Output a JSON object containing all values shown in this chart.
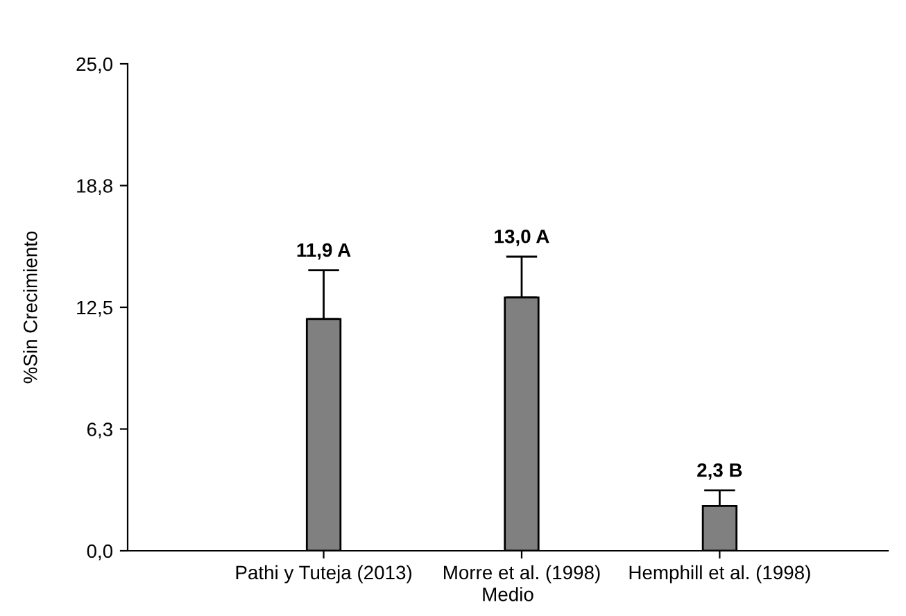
{
  "chart_data": {
    "type": "bar",
    "categories": [
      "Pathi y Tuteja (2013)",
      "Morre et al. (1998)",
      "Hemphill et al. (1998)"
    ],
    "values": [
      11.9,
      13.0,
      2.3
    ],
    "errors": [
      [
        11.9,
        14.4
      ],
      [
        13.0,
        15.1
      ],
      [
        2.3,
        3.1
      ]
    ],
    "value_labels": [
      "11,9 A",
      "13,0 A",
      "2,3 B"
    ],
    "color": "#808080",
    "xlabel": "Medio",
    "ylabel": "%Sin Crecimiento",
    "ylim": [
      0,
      25
    ],
    "yticks": [
      {
        "value": 0,
        "label": "0,0"
      },
      {
        "value": 6.25,
        "label": "6,3"
      },
      {
        "value": 12.5,
        "label": "12,5"
      },
      {
        "value": 18.75,
        "label": "18,8"
      },
      {
        "value": 25,
        "label": "25,0"
      }
    ],
    "grid": false,
    "legend": false
  }
}
